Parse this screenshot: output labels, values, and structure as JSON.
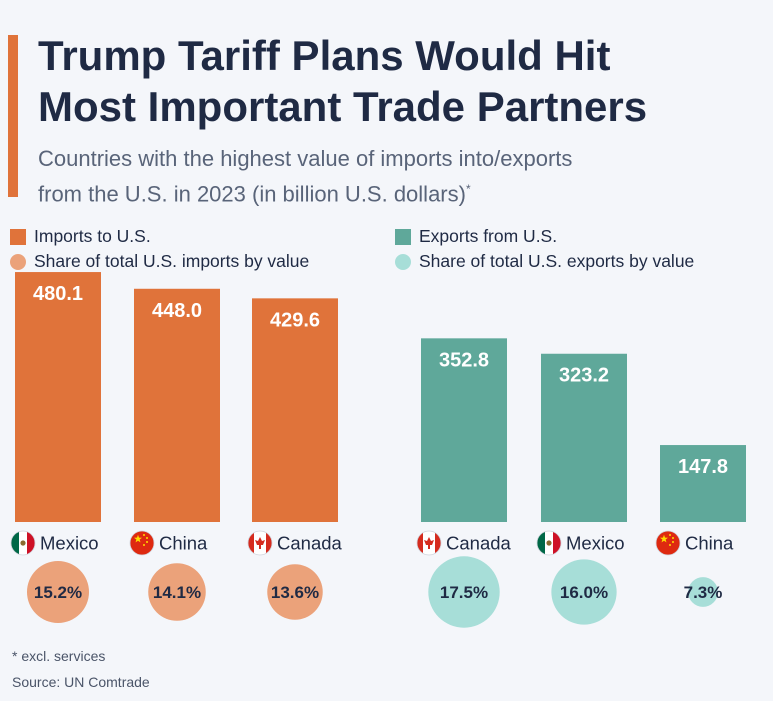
{
  "header": {
    "title_line1": "Trump Tariff Plans Would Hit",
    "title_line2": "Most Important Trade Partners",
    "subtitle_line1": "Countries with the highest value of imports into/exports",
    "subtitle_line2": "from the U.S. in 2023 (in billion U.S. dollars)",
    "subtitle_mark": "*"
  },
  "legend": {
    "imports_label": "Imports to U.S.",
    "imports_share_label": "Share of total U.S. imports by value",
    "exports_label": "Exports from U.S.",
    "exports_share_label": "Share of total U.S. exports by value"
  },
  "colors": {
    "imports_bar": "#e0733a",
    "imports_share": "#eba27a",
    "exports_bar": "#5fa89a",
    "exports_share": "#a7ded8",
    "title": "#1f2a44"
  },
  "chart_data": [
    {
      "type": "bar",
      "categories": [
        "Mexico",
        "China",
        "Canada"
      ],
      "series": [
        {
          "name": "Imports to U.S.",
          "values": [
            480.1,
            448.0,
            429.6
          ]
        },
        {
          "name": "Share of total U.S. imports by value",
          "values": [
            15.2,
            14.1,
            13.6
          ]
        }
      ],
      "value_labels": [
        "480.1",
        "448.0",
        "429.6"
      ],
      "share_labels": [
        "15.2%",
        "14.1%",
        "13.6%"
      ],
      "flags": [
        "mexico-flag-icon",
        "china-flag-icon",
        "canada-flag-icon"
      ]
    },
    {
      "type": "bar",
      "categories": [
        "Canada",
        "Mexico",
        "China"
      ],
      "series": [
        {
          "name": "Exports from U.S.",
          "values": [
            352.8,
            323.2,
            147.8
          ]
        },
        {
          "name": "Share of total U.S. exports by value",
          "values": [
            17.5,
            16.0,
            7.3
          ]
        }
      ],
      "value_labels": [
        "352.8",
        "323.2",
        "147.8"
      ],
      "share_labels": [
        "17.5%",
        "16.0%",
        "7.3%"
      ],
      "flags": [
        "canada-flag-icon",
        "mexico-flag-icon",
        "china-flag-icon"
      ]
    }
  ],
  "footer": {
    "note": "* excl. services",
    "source": "Source: UN Comtrade"
  }
}
